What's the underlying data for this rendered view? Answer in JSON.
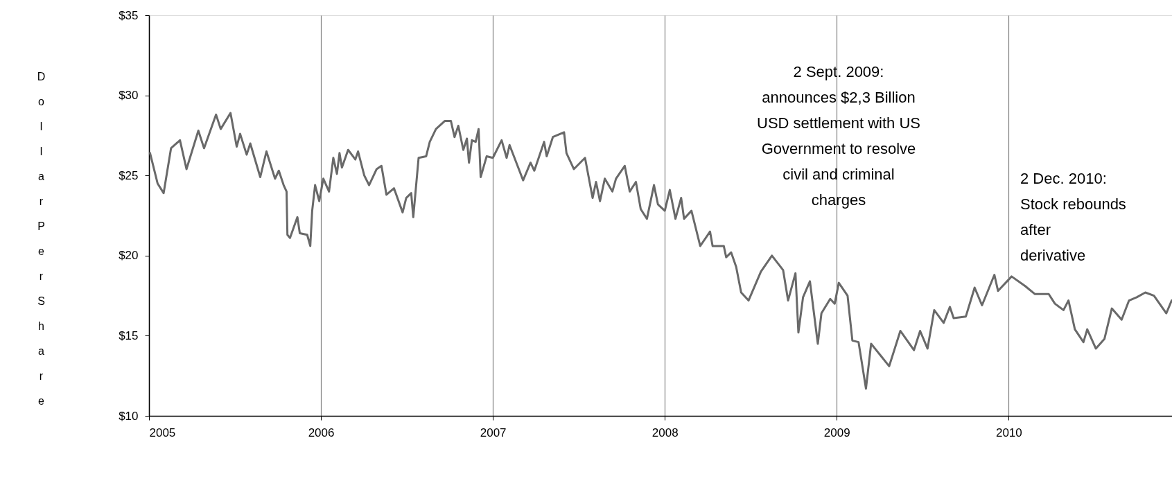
{
  "chart_data": {
    "type": "line",
    "ylabel": "Dollar Per Share",
    "x": [
      2005.006,
      2005.05,
      2005.085,
      2005.128,
      2005.18,
      2005.218,
      2005.287,
      2005.32,
      2005.39,
      2005.417,
      2005.474,
      2005.51,
      2005.53,
      2005.568,
      2005.589,
      2005.647,
      2005.683,
      2005.733,
      2005.755,
      2005.783,
      2005.8,
      2005.805,
      2005.82,
      2005.863,
      2005.877,
      2005.92,
      2005.938,
      2005.949,
      2005.966,
      2005.99,
      2006.014,
      2006.047,
      2006.072,
      2006.093,
      2006.108,
      2006.122,
      2006.158,
      2006.2,
      2006.216,
      2006.252,
      2006.28,
      2006.324,
      2006.352,
      2006.381,
      2006.425,
      2006.475,
      2006.496,
      2006.525,
      2006.537,
      2006.568,
      2006.612,
      2006.633,
      2006.669,
      2006.72,
      2006.756,
      2006.777,
      2006.799,
      2006.828,
      2006.849,
      2006.861,
      2006.878,
      2006.9,
      2006.917,
      2006.929,
      2006.964,
      2007.0,
      2007.051,
      2007.08,
      2007.097,
      2007.176,
      2007.219,
      2007.241,
      2007.298,
      2007.313,
      2007.349,
      2007.414,
      2007.428,
      2007.471,
      2007.536,
      2007.58,
      2007.6,
      2007.623,
      2007.651,
      2007.695,
      2007.716,
      2007.767,
      2007.796,
      2007.832,
      2007.86,
      2007.896,
      2007.937,
      2007.96,
      2008.0,
      2008.029,
      2008.062,
      2008.095,
      2008.112,
      2008.155,
      2008.206,
      2008.263,
      2008.278,
      2008.343,
      2008.357,
      2008.386,
      2008.415,
      2008.444,
      2008.487,
      2008.559,
      2008.623,
      2008.688,
      2008.717,
      2008.76,
      2008.777,
      2008.804,
      2008.844,
      2008.89,
      2008.911,
      2008.962,
      2008.988,
      2009.012,
      2009.063,
      2009.091,
      2009.127,
      2009.17,
      2009.2,
      2009.305,
      2009.37,
      2009.449,
      2009.485,
      2009.528,
      2009.567,
      2009.622,
      2009.658,
      2009.68,
      2009.751,
      2009.802,
      2009.845,
      2009.917,
      2009.938,
      2010.017,
      2010.096,
      2010.153,
      2010.233,
      2010.269,
      2010.319,
      2010.348,
      2010.385,
      2010.435,
      2010.457,
      2010.507,
      2010.557,
      2010.6,
      2010.657,
      2010.7,
      2010.745,
      2010.795,
      2010.845,
      2010.917,
      2010.948
    ],
    "series": [
      {
        "color": "#696969",
        "values": [
          26.4,
          24.5,
          23.9,
          26.7,
          27.2,
          25.4,
          27.8,
          26.7,
          28.8,
          27.9,
          28.9,
          26.8,
          27.6,
          26.3,
          27.0,
          24.9,
          26.5,
          24.8,
          25.3,
          24.4,
          24.0,
          21.3,
          21.1,
          22.4,
          21.4,
          21.3,
          20.6,
          22.8,
          24.4,
          23.4,
          24.8,
          24.0,
          26.1,
          25.1,
          26.4,
          25.5,
          26.6,
          26.0,
          26.5,
          25.0,
          24.4,
          25.4,
          25.6,
          23.8,
          24.2,
          22.7,
          23.6,
          23.9,
          22.4,
          26.1,
          26.2,
          27.1,
          27.9,
          28.4,
          28.4,
          27.4,
          28.1,
          26.6,
          27.3,
          25.8,
          27.2,
          27.1,
          27.9,
          24.9,
          26.2,
          26.1,
          27.2,
          26.1,
          26.9,
          24.7,
          25.8,
          25.3,
          27.1,
          26.2,
          27.4,
          27.7,
          26.4,
          25.4,
          26.1,
          23.6,
          24.6,
          23.4,
          24.8,
          24.0,
          24.8,
          25.6,
          24.0,
          24.6,
          22.9,
          22.3,
          24.4,
          23.2,
          22.8,
          24.1,
          22.3,
          23.6,
          22.3,
          22.8,
          20.6,
          21.5,
          20.6,
          20.6,
          19.9,
          20.2,
          19.3,
          17.7,
          17.2,
          19.0,
          20.0,
          19.1,
          17.2,
          18.9,
          15.2,
          17.4,
          18.4,
          14.5,
          16.4,
          17.3,
          17.0,
          18.3,
          17.5,
          14.7,
          14.6,
          11.7,
          14.5,
          13.1,
          15.3,
          14.1,
          15.3,
          14.2,
          16.6,
          15.8,
          16.8,
          16.1,
          16.2,
          18.0,
          16.9,
          18.8,
          17.8,
          18.7,
          18.1,
          17.6,
          17.6,
          17.0,
          16.6,
          17.2,
          15.4,
          14.6,
          15.4,
          14.2,
          14.8,
          16.7,
          16.0,
          17.2,
          17.4,
          17.7,
          17.5,
          16.4,
          17.2
        ]
      }
    ],
    "xlim": [
      2005,
      2010.95
    ],
    "xticks": [
      2005,
      2006,
      2007,
      2008,
      2009,
      2010
    ],
    "ylim": [
      10,
      35
    ],
    "yticks": [
      {
        "value": 10,
        "label": "$10"
      },
      {
        "value": 15,
        "label": "$15"
      },
      {
        "value": 20,
        "label": "$20"
      },
      {
        "value": 25,
        "label": "$25"
      },
      {
        "value": 30,
        "label": "$30"
      },
      {
        "value": 35,
        "label": "$35"
      }
    ],
    "grid": "x",
    "marker": "none",
    "line_style": "solid",
    "annotations": [
      "2 Sept. 2009: announces $2,3 Billion USD settlement with US Government to resolve civil and criminal charges",
      "2 Dec. 2010: Stock rebounds after derivative"
    ]
  }
}
